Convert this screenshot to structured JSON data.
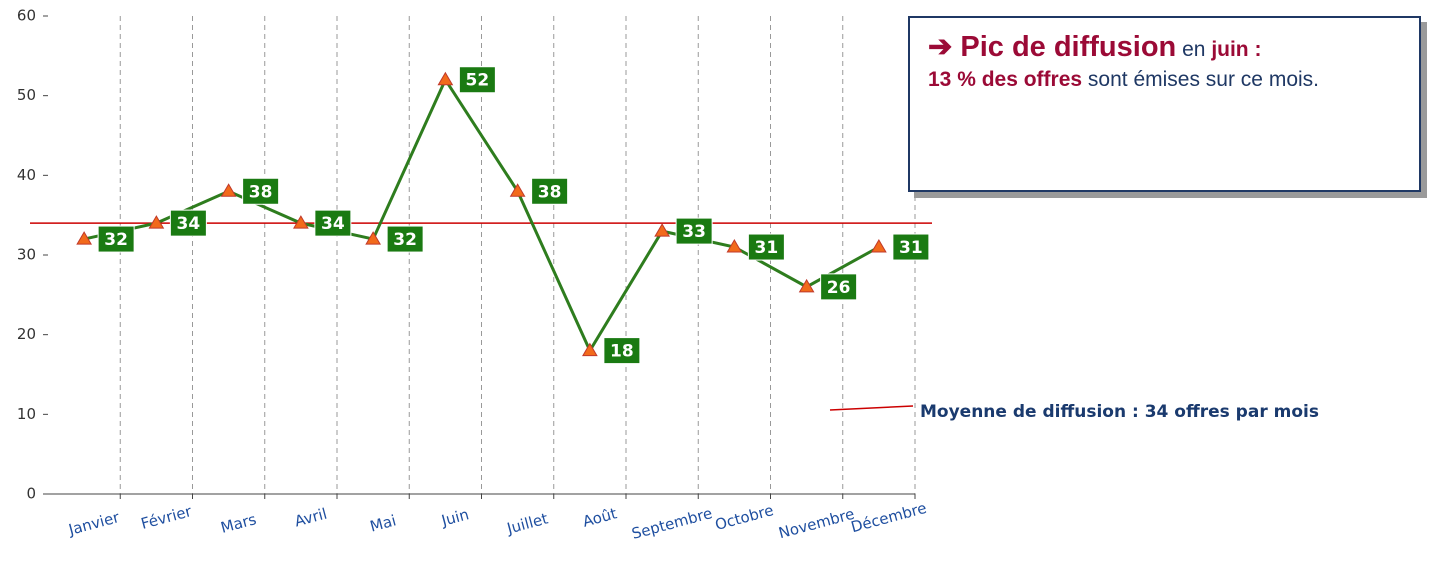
{
  "chart_data": {
    "type": "line",
    "categories": [
      "Janvier",
      "Février",
      "Mars",
      "Avril",
      "Mai",
      "Juin",
      "Juillet",
      "Août",
      "Septembre",
      "Octobre",
      "Novembre",
      "Décembre"
    ],
    "series": [
      {
        "name": "Offres",
        "color": "#2e7d1e",
        "marker_color": "#f26a1b",
        "label_color": "#1a7a12",
        "values": [
          32,
          34,
          38,
          34,
          32,
          52,
          38,
          18,
          33,
          31,
          26,
          31
        ]
      }
    ],
    "ylim": [
      0,
      60
    ],
    "yticks": [
      0,
      10,
      20,
      30,
      40,
      50,
      60
    ],
    "grid": true,
    "average": {
      "value": 34,
      "color": "#cc0000",
      "label": "Moyenne de diffusion : 34 offres par mois"
    },
    "callout": {
      "parts": [
        "➔ Pic de diffusion",
        "en",
        "juin :",
        "13 % des offres",
        "sont émises sur ce mois."
      ]
    }
  }
}
